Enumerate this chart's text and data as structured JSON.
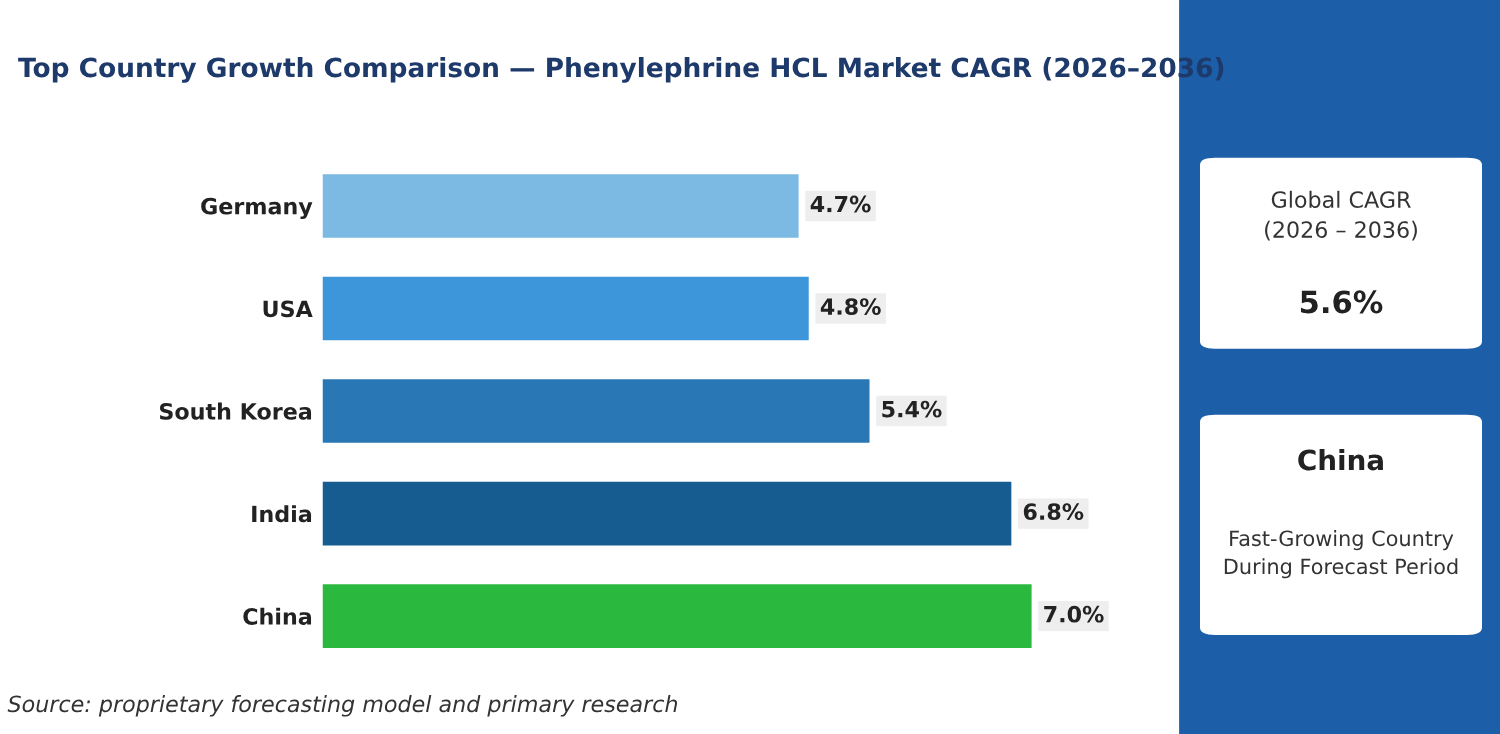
{
  "chart_data": {
    "type": "bar",
    "orientation": "horizontal",
    "title": "Top Country Growth Comparison — Phenylephrine HCL Market CAGR (2026–2036)",
    "categories": [
      "Germany",
      "USA",
      "South Korea",
      "India",
      "China"
    ],
    "values": [
      4.7,
      4.8,
      5.4,
      6.8,
      7.0
    ],
    "colors": [
      "#7cb9e3",
      "#3d96d9",
      "#2a77b6",
      "#165c91",
      "#2bb83e"
    ],
    "value_labels": [
      "4.7%",
      "4.8%",
      "5.4%",
      "6.8%",
      "7.0%"
    ],
    "grid": false,
    "legend": false,
    "annotations": [
      "Source: proprietary forecasting model and primary research",
      "Global CAGR\n(2026 – 2036)",
      "5.6%",
      "China",
      "Fast-Growing Country\nDuring Forecast Period"
    ]
  }
}
